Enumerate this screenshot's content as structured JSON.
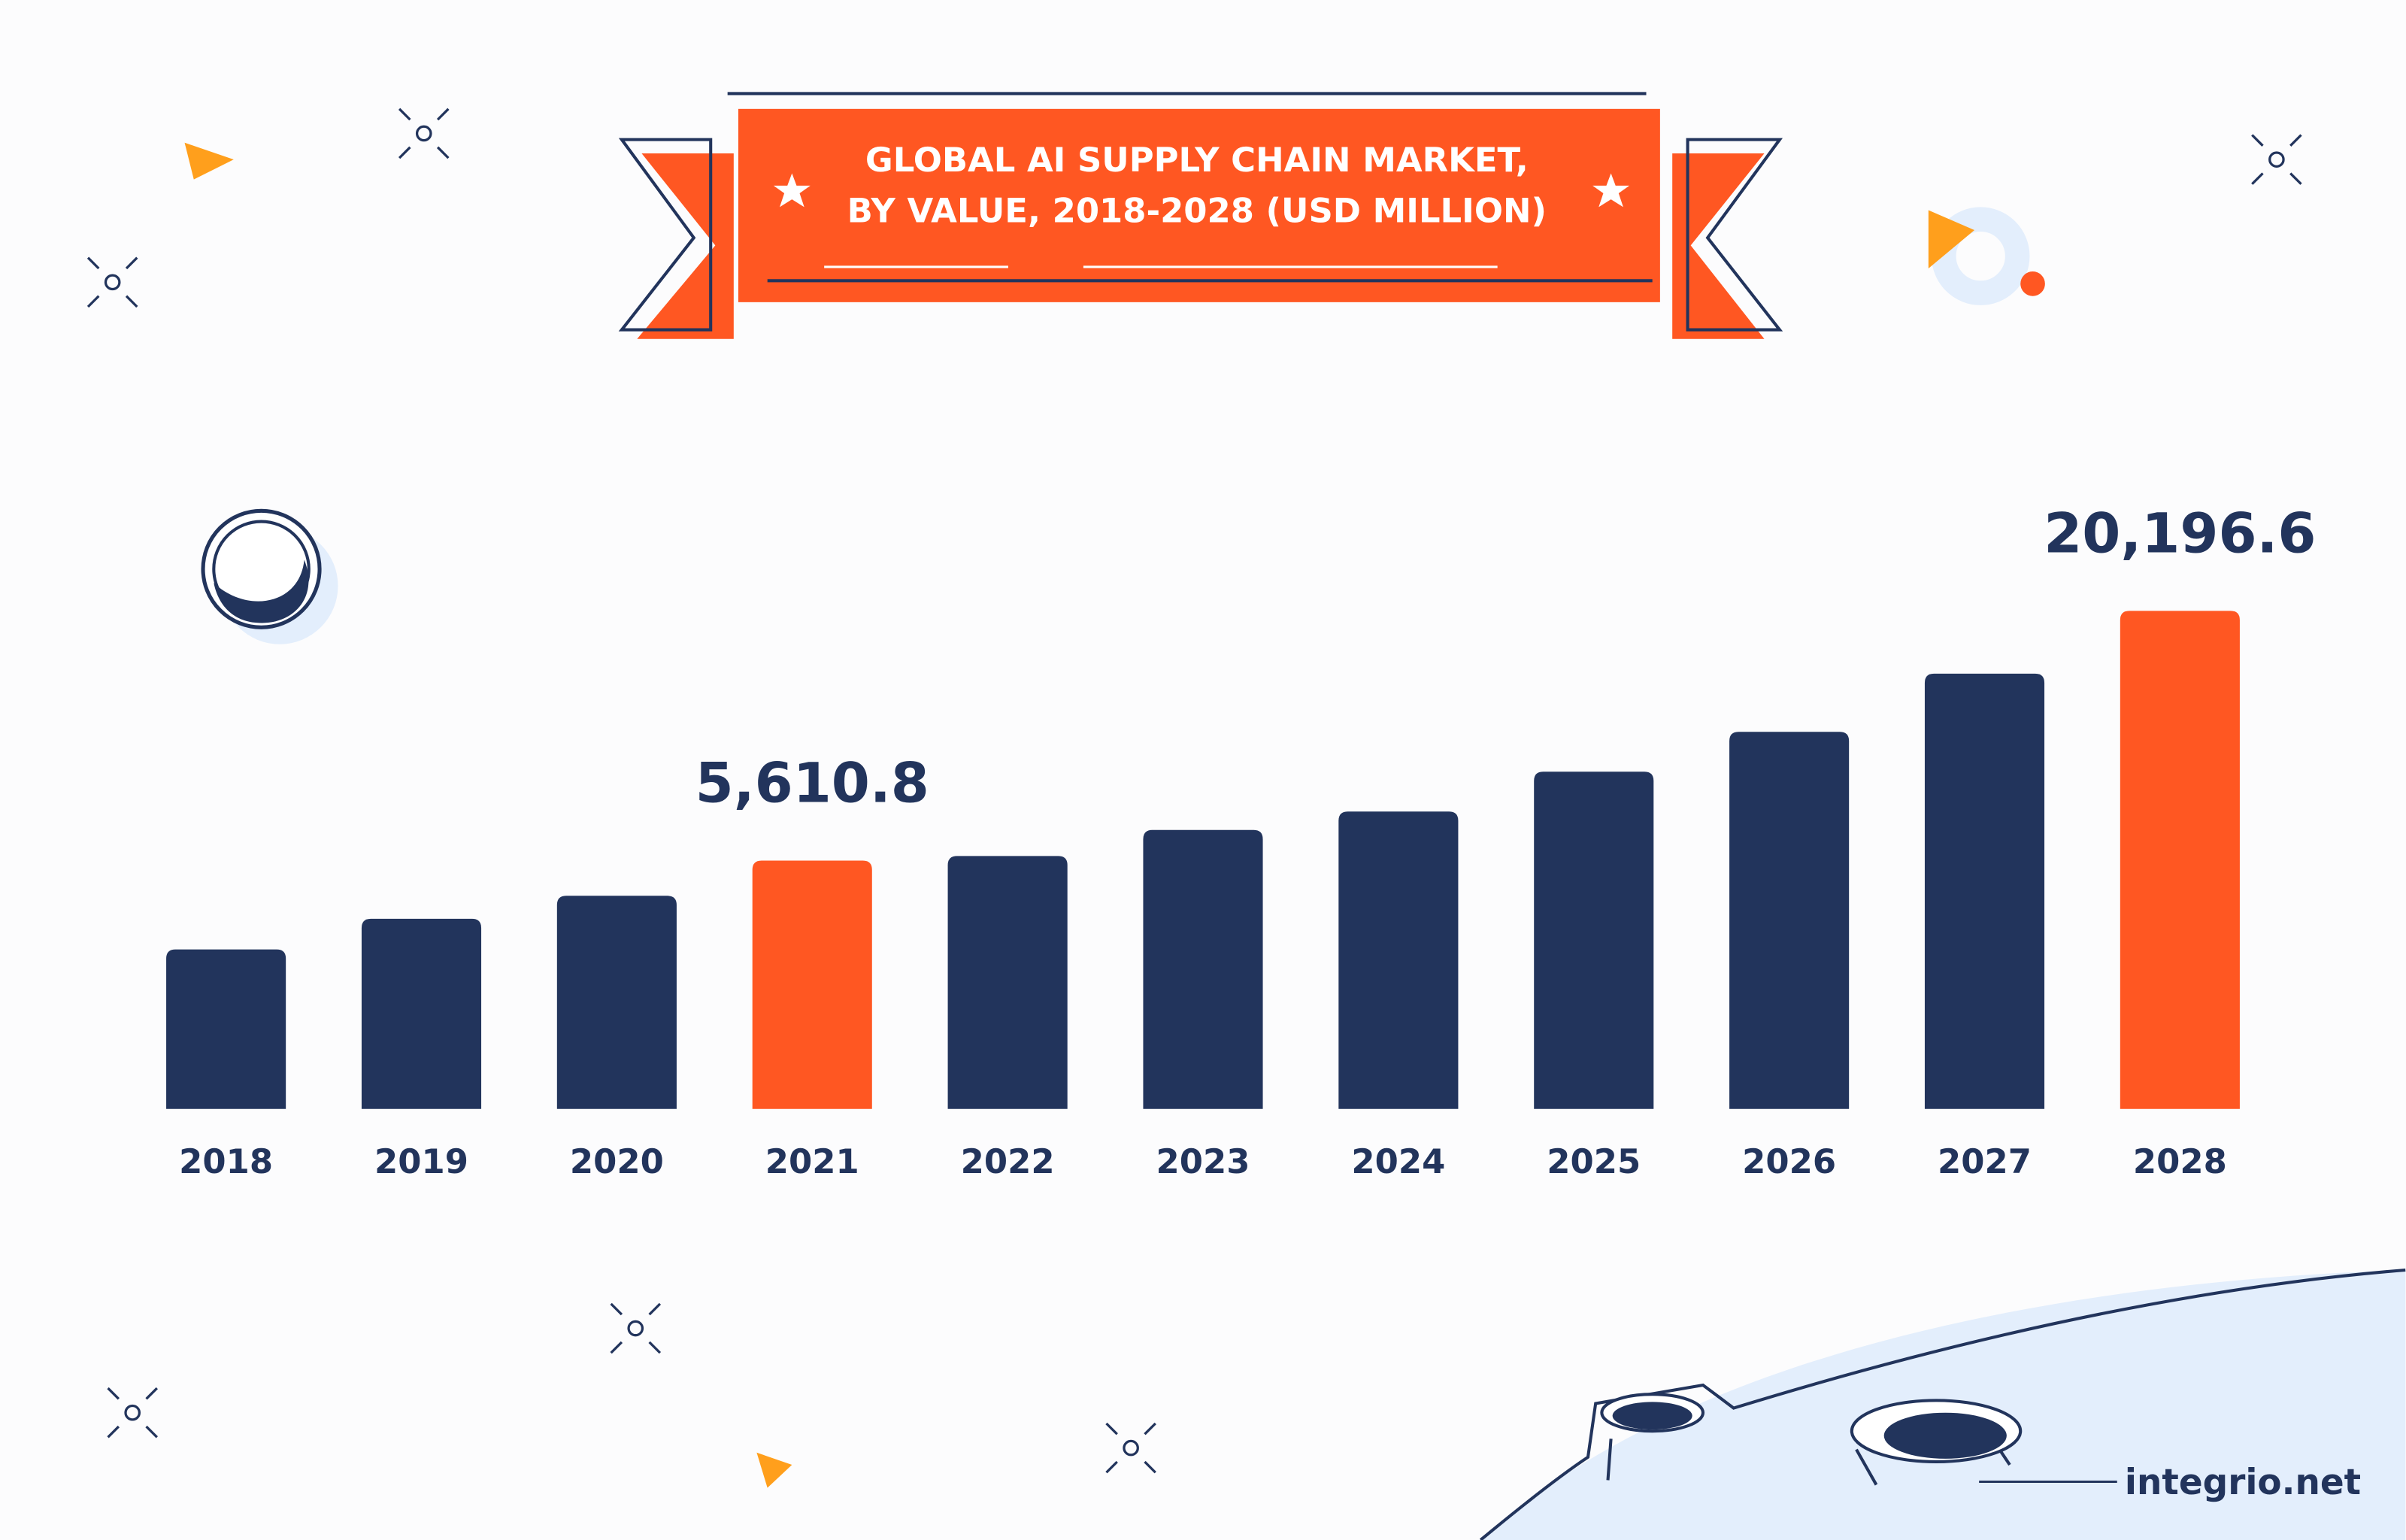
{
  "chart_data": {
    "type": "bar",
    "title": [
      "GLOBAL AI SUPPLY CHAIN MARKET,",
      "BY VALUE, 2018-2028 (USD MILLION)"
    ],
    "categories": [
      "2018",
      "2019",
      "2020",
      "2021",
      "2022",
      "2023",
      "2024",
      "2025",
      "2026",
      "2027",
      "2028"
    ],
    "values": [
      421,
      2210,
      3553,
      5610.8,
      5879,
      7400,
      8474,
      10801,
      13128,
      16528,
      20196.6
    ],
    "value_labels": [
      null,
      null,
      null,
      "5,610.8",
      null,
      null,
      null,
      null,
      null,
      null,
      "20,196.6"
    ],
    "colors": [
      "#22345c",
      "#22345c",
      "#22345c",
      "#ff5722",
      "#22345c",
      "#22345c",
      "#22345c",
      "#22345c",
      "#22345c",
      "#22345c",
      "#ff5722"
    ],
    "ylim": [
      -8900,
      29000
    ]
  },
  "footer": {
    "brand": "integrio.net"
  }
}
